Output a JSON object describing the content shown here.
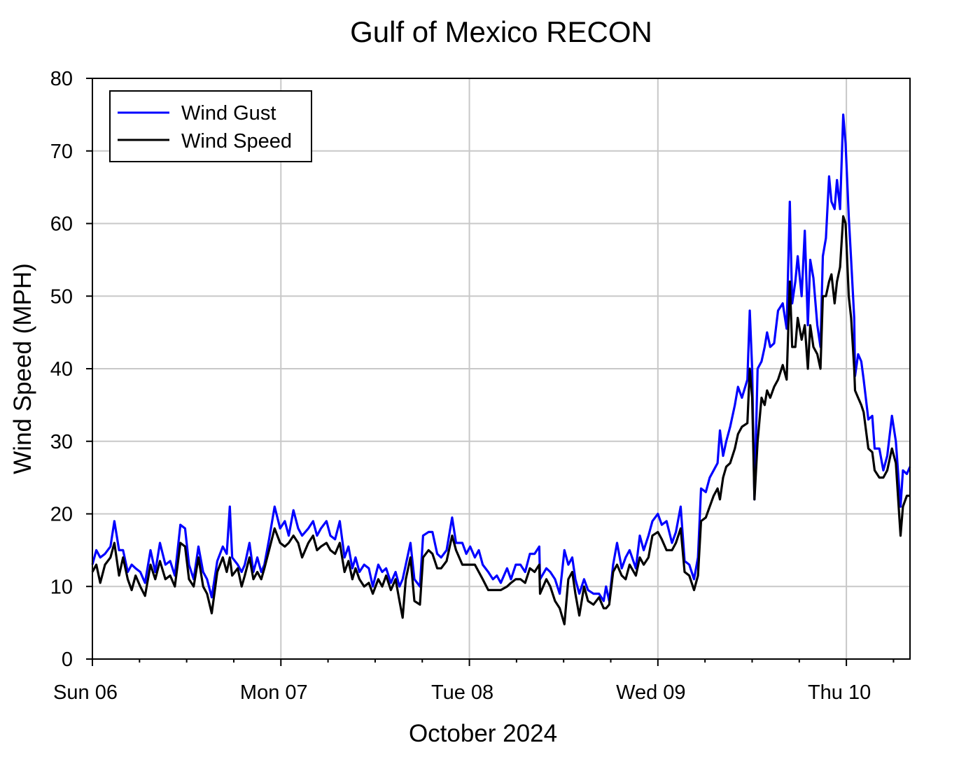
{
  "chart_data": {
    "type": "line",
    "title": "Gulf of Mexico RECON",
    "xlabel": "October 2024",
    "ylabel": "Wind Speed (MPH)",
    "x_unit": "hours since Sun 06 00:00",
    "xlim": [
      0,
      104.1
    ],
    "ylim": [
      0,
      80
    ],
    "yticks": [
      0,
      10,
      20,
      30,
      40,
      50,
      60,
      70,
      80
    ],
    "xticks": [
      {
        "hour": 0,
        "label": "Sun 06"
      },
      {
        "hour": 24,
        "label": "Mon 07"
      },
      {
        "hour": 48,
        "label": "Tue 08"
      },
      {
        "hour": 72,
        "label": "Wed 09"
      },
      {
        "hour": 96,
        "label": "Thu 10"
      }
    ],
    "minor_tick_interval_hours": 6,
    "grid": true,
    "legend_position": "top-left",
    "x": [
      0,
      0.5,
      1.0,
      1.6,
      2.3,
      2.8,
      3.4,
      3.9,
      4.5,
      5.0,
      5.5,
      6.1,
      6.7,
      7.4,
      8.0,
      8.6,
      9.3,
      9.9,
      10.5,
      11.2,
      11.8,
      12.3,
      12.9,
      13.5,
      14.1,
      14.6,
      15.2,
      15.9,
      16.6,
      17.1,
      17.5,
      17.8,
      18.5,
      19.0,
      19.4,
      20.0,
      20.5,
      21.0,
      21.5,
      21.9,
      22.5,
      23.2,
      23.9,
      24.5,
      25.0,
      25.6,
      26.2,
      26.7,
      27.5,
      28.1,
      28.6,
      29.1,
      29.8,
      30.3,
      30.9,
      31.5,
      32.1,
      32.6,
      33.1,
      33.5,
      34.0,
      34.6,
      35.2,
      35.7,
      36.4,
      36.9,
      37.4,
      38.0,
      38.6,
      39.1,
      39.5,
      39.9,
      40.5,
      41.0,
      41.7,
      42.1,
      42.8,
      43.3,
      43.9,
      44.4,
      45.1,
      45.8,
      46.3,
      47.1,
      47.6,
      48.1,
      48.7,
      49.2,
      49.7,
      50.4,
      51.0,
      51.5,
      52.0,
      52.8,
      53.3,
      53.9,
      54.5,
      55.1,
      55.7,
      56.3,
      56.9,
      57.0,
      57.8,
      58.3,
      58.9,
      59.5,
      60.1,
      60.6,
      61.1,
      61.5,
      62.0,
      62.6,
      63.1,
      63.8,
      64.5,
      65.1,
      65.4,
      65.8,
      66.3,
      66.8,
      67.4,
      67.9,
      68.4,
      69.2,
      69.7,
      70.2,
      70.8,
      71.3,
      72.0,
      72.5,
      73.1,
      73.8,
      74.3,
      74.9,
      75.4,
      76.0,
      76.6,
      77.1,
      77.5,
      78.1,
      78.6,
      79.1,
      79.6,
      79.9,
      80.3,
      80.7,
      81.2,
      81.8,
      82.2,
      82.7,
      83.4,
      83.7,
      84.0,
      84.3,
      84.7,
      85.2,
      85.6,
      85.9,
      86.3,
      86.8,
      87.3,
      87.9,
      88.4,
      88.8,
      89.1,
      89.5,
      89.8,
      90.3,
      90.7,
      91.1,
      91.4,
      91.8,
      92.3,
      92.7,
      93.0,
      93.4,
      93.8,
      94.1,
      94.5,
      94.8,
      95.2,
      95.6,
      95.9,
      96.3,
      96.6,
      97.0,
      97.1,
      97.5,
      97.9,
      98.2,
      98.8,
      99.3,
      99.6,
      100.2,
      100.7,
      101.2,
      101.8,
      102.3,
      102.9,
      103.2,
      103.7,
      104.1
    ],
    "series": [
      {
        "name": "Wind Gust",
        "color": "#0000ff",
        "values": [
          13,
          15,
          14,
          14.5,
          15.5,
          19,
          15,
          15,
          12,
          13,
          12.5,
          12,
          10.5,
          15,
          12,
          16,
          13,
          13.5,
          11.5,
          18.5,
          18,
          13,
          11,
          15.5,
          12,
          11,
          8.5,
          13.5,
          15.5,
          14.5,
          21,
          14,
          13,
          12,
          13,
          16,
          12,
          14,
          12,
          13,
          16.5,
          21,
          18,
          19,
          17,
          20.5,
          18,
          17,
          18,
          19,
          17,
          18,
          19,
          17,
          16.5,
          19,
          14,
          15.5,
          12.5,
          14,
          12,
          13,
          12.5,
          10,
          13,
          12,
          12.5,
          10.5,
          12,
          10,
          11,
          13,
          16,
          11,
          10,
          17,
          17.5,
          17.5,
          14.5,
          14,
          15,
          19.5,
          16,
          16,
          14.5,
          15.5,
          14,
          15,
          13,
          12,
          11,
          11.5,
          10.5,
          12.5,
          11,
          13,
          13,
          12,
          14.5,
          14.5,
          15.5,
          11,
          12.5,
          12,
          11,
          9,
          15,
          13,
          14,
          11,
          9,
          11,
          9.5,
          9,
          9,
          8,
          10,
          8,
          13,
          16,
          12.5,
          14,
          15,
          12.5,
          17,
          15,
          17,
          19,
          20,
          18.5,
          19,
          16,
          17.5,
          21,
          13.5,
          13,
          11,
          14,
          23.5,
          23,
          25,
          26,
          27,
          31.5,
          28,
          30,
          32,
          35,
          37.5,
          36,
          38.5,
          48,
          40,
          22,
          40,
          41,
          43,
          45,
          43,
          43.5,
          48,
          49,
          45.5,
          63,
          49,
          52,
          55.5,
          50,
          59,
          46,
          55,
          52.5,
          46,
          43,
          55.5,
          58,
          66.5,
          63,
          62,
          66,
          62,
          75,
          71,
          61,
          55,
          47,
          39,
          42,
          41,
          38.5,
          33,
          33.5,
          29,
          29,
          26,
          28,
          33.5,
          30,
          21,
          26,
          25.5,
          26.5
        ]
      },
      {
        "name": "Wind Speed",
        "color": "#000000",
        "values": [
          12,
          13,
          10.5,
          13,
          14,
          16,
          11.5,
          14,
          11,
          9.5,
          11.5,
          10,
          8.7,
          13,
          11,
          13.5,
          11,
          11.5,
          10,
          16,
          15.5,
          11,
          10,
          14,
          10,
          9,
          6.3,
          12,
          14,
          12,
          14,
          11.5,
          12.5,
          10,
          11.5,
          14,
          11,
          12,
          11,
          12.5,
          15,
          18,
          16,
          15.5,
          16,
          17,
          16,
          14,
          16,
          17,
          15,
          15.5,
          16,
          15,
          14.5,
          16,
          12,
          13.5,
          11,
          12.5,
          11,
          10,
          10.5,
          9,
          11,
          10,
          11.5,
          9.5,
          11,
          8,
          5.7,
          11,
          14,
          8,
          7.5,
          14,
          15,
          14.5,
          12.5,
          12.5,
          13.5,
          17,
          15,
          13,
          13,
          13,
          13,
          12,
          11,
          9.5,
          9.5,
          9.5,
          9.5,
          10,
          10.5,
          11,
          11,
          10.5,
          12.5,
          12,
          13,
          9,
          11,
          10,
          8,
          7,
          4.8,
          11,
          12,
          9,
          6,
          10,
          8,
          7.5,
          8.5,
          7,
          7,
          7.5,
          12,
          13,
          11.5,
          11,
          13,
          11.5,
          14,
          13,
          14,
          17,
          17.5,
          16.5,
          15,
          15,
          16,
          18,
          12,
          11.5,
          9.5,
          11.5,
          19,
          19.5,
          21,
          22.5,
          23.5,
          22,
          25,
          26.5,
          27,
          29,
          31,
          32,
          32.5,
          40,
          36,
          22,
          30,
          36,
          35,
          37,
          36,
          37.5,
          38.5,
          40.5,
          38.5,
          52,
          43,
          43,
          47,
          44,
          46,
          40,
          46,
          43,
          42,
          40,
          50,
          50,
          52,
          53,
          49,
          52,
          54,
          61,
          60,
          50,
          47,
          40,
          37,
          36,
          35,
          34,
          29,
          28.5,
          26,
          25,
          25,
          26,
          29,
          27,
          17,
          21,
          22.5,
          22.5
        ]
      }
    ]
  }
}
